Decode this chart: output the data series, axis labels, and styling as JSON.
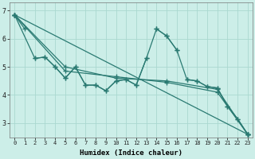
{
  "xlabel": "Humidex (Indice chaleur)",
  "background_color": "#cceee8",
  "grid_color": "#aad8d0",
  "line_color": "#2a7a72",
  "xlim": [
    -0.5,
    23.5
  ],
  "ylim": [
    2.5,
    7.3
  ],
  "xticks": [
    0,
    1,
    2,
    3,
    4,
    5,
    6,
    7,
    8,
    9,
    10,
    11,
    12,
    13,
    14,
    15,
    16,
    17,
    18,
    19,
    20,
    21,
    22,
    23
  ],
  "yticks": [
    3,
    4,
    5,
    6,
    7
  ],
  "lines": [
    {
      "x": [
        0,
        1
      ],
      "y": [
        6.85,
        6.35
      ]
    },
    {
      "x": [
        2,
        3,
        4,
        5,
        6,
        7,
        8,
        9,
        10,
        11,
        12,
        13
      ],
      "y": [
        5.3,
        5.35,
        5.0,
        4.6,
        5.0,
        4.35,
        4.35,
        4.15,
        4.5,
        4.55,
        4.35,
        5.3
      ]
    },
    {
      "x": [
        14,
        15,
        16
      ],
      "y": [
        6.35,
        6.1,
        5.6
      ]
    },
    {
      "x": [
        17,
        18,
        19,
        20,
        21,
        22,
        23
      ],
      "y": [
        4.55,
        4.5,
        4.3,
        4.25,
        3.6,
        3.15,
        2.6
      ]
    },
    {
      "x": [
        0,
        2,
        3,
        4,
        5,
        6,
        7,
        8,
        9,
        10,
        11,
        12,
        13,
        14,
        15,
        16,
        17,
        18,
        19,
        20,
        21,
        22,
        23
      ],
      "y": [
        6.85,
        5.3,
        5.35,
        5.0,
        4.6,
        5.0,
        4.35,
        4.35,
        4.15,
        4.5,
        4.55,
        4.35,
        5.3,
        6.35,
        6.1,
        5.6,
        4.55,
        4.5,
        4.3,
        4.25,
        3.6,
        3.15,
        2.6
      ]
    },
    {
      "x": [
        0,
        23
      ],
      "y": [
        6.85,
        2.6
      ]
    },
    {
      "x": [
        0,
        5,
        10,
        15,
        20,
        23
      ],
      "y": [
        6.85,
        4.85,
        4.65,
        4.45,
        4.1,
        2.6
      ]
    },
    {
      "x": [
        0,
        5,
        10,
        15,
        20,
        23
      ],
      "y": [
        6.85,
        5.0,
        4.6,
        4.5,
        4.2,
        2.6
      ]
    }
  ]
}
